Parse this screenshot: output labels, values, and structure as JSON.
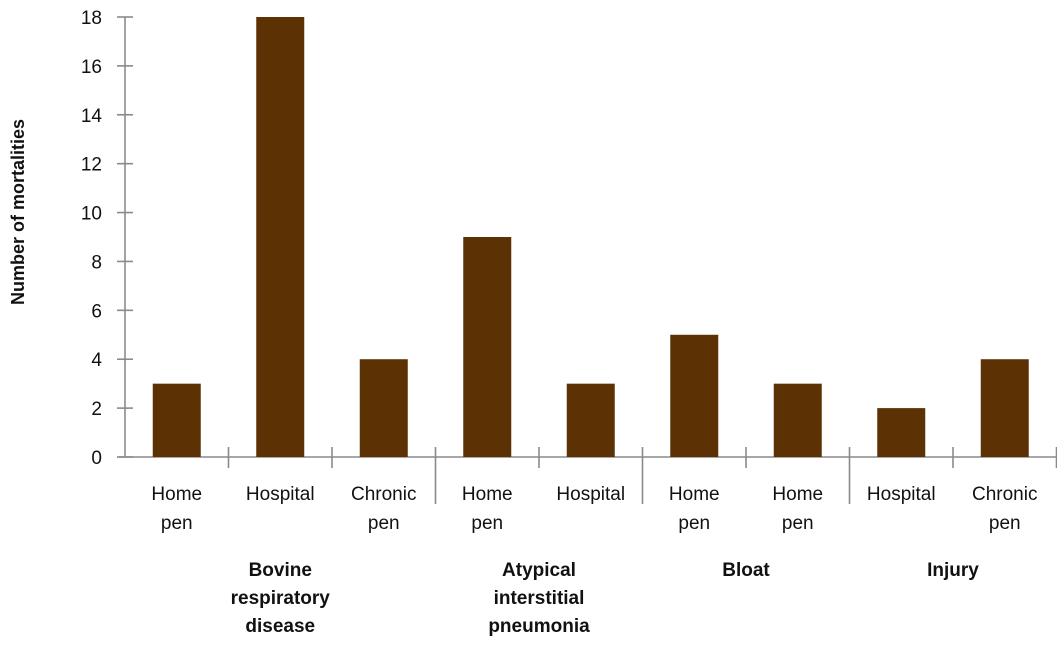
{
  "chart_data": {
    "type": "bar",
    "ylabel": "Number of mortalities",
    "xlabel": "",
    "ylim": [
      0,
      18
    ],
    "yticks": [
      0,
      2,
      4,
      6,
      8,
      10,
      12,
      14,
      16,
      18
    ],
    "bar_color": "#5c3104",
    "categories": [
      {
        "label_lines": [
          "Home",
          "pen"
        ],
        "group": 0,
        "value": 3
      },
      {
        "label_lines": [
          "Hospital"
        ],
        "group": 0,
        "value": 18
      },
      {
        "label_lines": [
          "Chronic",
          "pen"
        ],
        "group": 0,
        "value": 4
      },
      {
        "label_lines": [
          "Home",
          "pen"
        ],
        "group": 1,
        "value": 9
      },
      {
        "label_lines": [
          "Hospital"
        ],
        "group": 1,
        "value": 3
      },
      {
        "label_lines": [
          "Home",
          "pen"
        ],
        "group": 2,
        "value": 5
      },
      {
        "label_lines": [
          "Home",
          "pen"
        ],
        "group": 2,
        "value": 3
      },
      {
        "label_lines": [
          "Hospital"
        ],
        "group": 3,
        "value": 2
      },
      {
        "label_lines": [
          "Chronic",
          "pen"
        ],
        "group": 3,
        "value": 4
      }
    ],
    "groups": [
      {
        "label_lines": [
          "Bovine",
          "respiratory",
          "disease"
        ]
      },
      {
        "label_lines": [
          "Atypical",
          "interstitial",
          "pneumonia"
        ]
      },
      {
        "label_lines": [
          "Bloat"
        ]
      },
      {
        "label_lines": [
          "Injury"
        ]
      }
    ]
  }
}
